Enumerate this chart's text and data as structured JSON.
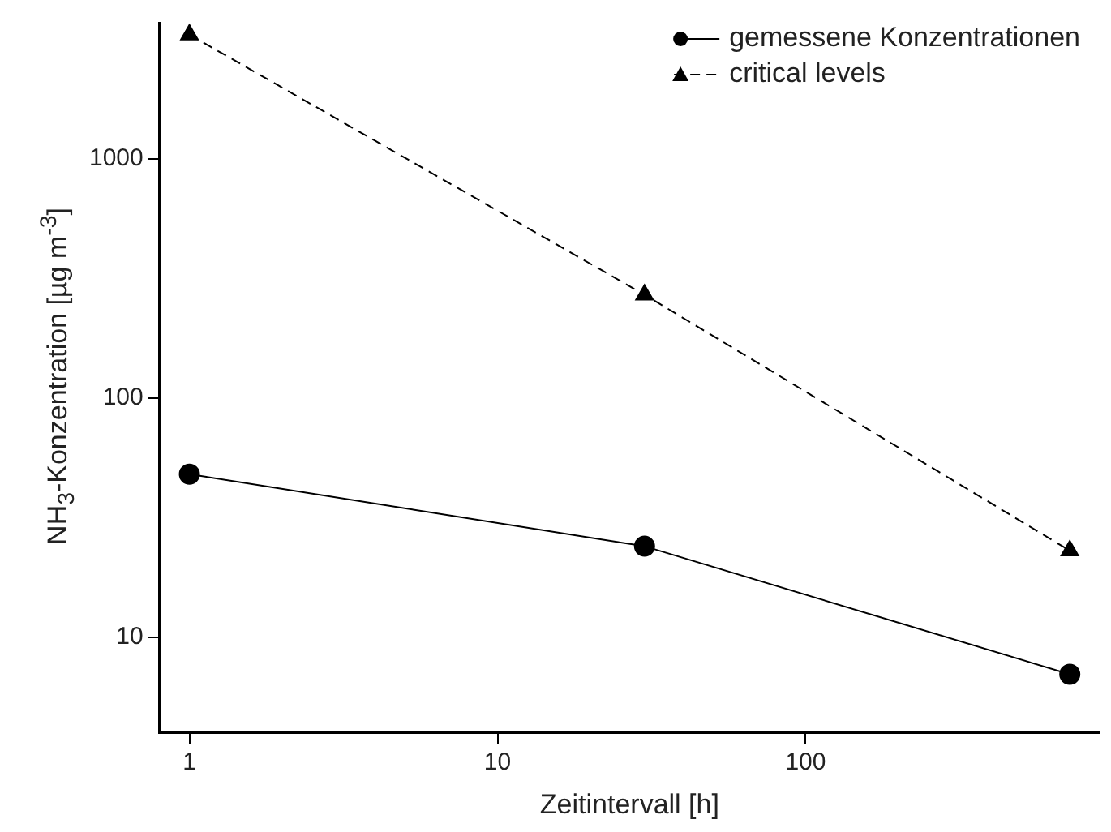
{
  "chart_data": {
    "type": "line",
    "xlabel": "Zeitintervall [h]",
    "ylabel": "NH$_{3}$-Konzentration [µg m$^{-3}$]",
    "x": [
      1,
      30,
      720
    ],
    "series": [
      {
        "name": "gemessene Konzentrationen",
        "color": "#000000",
        "values": [
          48,
          24,
          7
        ],
        "marker": "circle",
        "line_style": "solid"
      },
      {
        "name": "critical levels",
        "color": "#000000",
        "values": [
          3300,
          270,
          23
        ],
        "marker": "triangle",
        "line_style": "dashed"
      }
    ],
    "log": "xy",
    "xlim": [
      0.8,
      900
    ],
    "xticks": [
      1,
      10,
      100
    ],
    "ylim": [
      4,
      3700
    ],
    "yticks": [
      10,
      100,
      1000
    ],
    "grid": false,
    "legend": "top right"
  }
}
